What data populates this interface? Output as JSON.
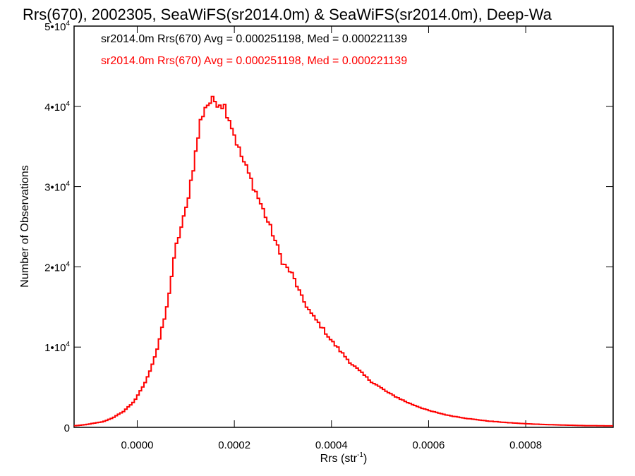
{
  "chart_data": {
    "type": "histogram",
    "title": "Rrs(670), 2002305, SeaWiFS(sr2014.0m) & SeaWiFS(sr2014.0m), Deep-Wa",
    "xlabel": "Rrs (str",
    "xlabel_sup": "-1",
    "xlabel_suffix": ")",
    "ylabel": "Number of Observations",
    "xlim": [
      -0.00013,
      0.00098
    ],
    "ylim": [
      0,
      50000
    ],
    "x_ticks": [
      0.0,
      0.0002,
      0.0004,
      0.0006,
      0.0008
    ],
    "x_tick_labels": [
      "0.0000",
      "0.0002",
      "0.0004",
      "0.0006",
      "0.0008"
    ],
    "y_ticks": [
      0,
      10000,
      20000,
      30000,
      40000,
      50000
    ],
    "y_tick_labels": [
      {
        "base": "0",
        "sup": ""
      },
      {
        "base": "1•10",
        "sup": "4"
      },
      {
        "base": "2•10",
        "sup": "4"
      },
      {
        "base": "3•10",
        "sup": "4"
      },
      {
        "base": "4•10",
        "sup": "4"
      },
      {
        "base": "5•10",
        "sup": "4"
      }
    ],
    "legend": [
      {
        "text": "sr2014.0m Rrs(670) Avg = 0.000251198, Med = 0.000221139",
        "color": "#000000"
      },
      {
        "text": "sr2014.0m Rrs(670) Avg = 0.000251198, Med = 0.000221139",
        "color": "#ff0000"
      }
    ],
    "legend_position": "top-left",
    "series": [
      {
        "name": "sr2014.0m Rrs(670)",
        "color": "#ff0000",
        "bin_start": -0.00013,
        "bin_width": 4.96e-06,
        "x": [
          -0.00013,
          -0.00011,
          -9e-05,
          -7e-05,
          -5e-05,
          -3e-05,
          -1e-05,
          0.0,
          2e-05,
          4e-05,
          6e-05,
          8e-05,
          0.0001,
          0.00011,
          0.00012,
          0.00013,
          0.00014,
          0.00015,
          0.00016,
          0.00017,
          0.00018,
          0.00019,
          0.0002,
          0.00021,
          0.00022,
          0.00024,
          0.00026,
          0.00028,
          0.0003,
          0.00032,
          0.00034,
          0.00036,
          0.00038,
          0.0004,
          0.00044,
          0.00048,
          0.00052,
          0.00056,
          0.0006,
          0.00064,
          0.00068,
          0.00072,
          0.00076,
          0.0008,
          0.00084,
          0.00088,
          0.00092,
          0.00098
        ],
        "y": [
          200,
          300,
          500,
          700,
          1200,
          1900,
          3000,
          3800,
          6000,
          9500,
          14500,
          22500,
          27000,
          30500,
          34000,
          38000,
          40000,
          40500,
          40700,
          40500,
          40000,
          38500,
          36500,
          34500,
          33000,
          30000,
          27000,
          24000,
          20500,
          19000,
          16000,
          14000,
          12500,
          10800,
          8000,
          5800,
          4200,
          3000,
          2100,
          1500,
          1100,
          800,
          600,
          450,
          350,
          280,
          220,
          180
        ]
      }
    ]
  }
}
